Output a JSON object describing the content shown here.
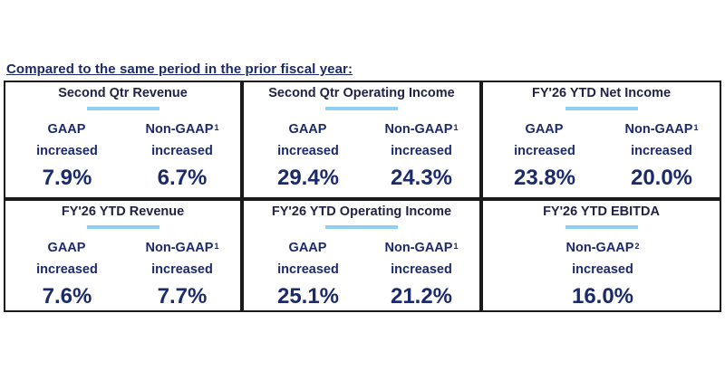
{
  "heading": "Compared to the same period in the prior fiscal year:",
  "cards": [
    {
      "title": "Second Qtr Revenue",
      "metrics": [
        {
          "label": "GAAP",
          "note": "",
          "sub": "increased",
          "value": "7.9%"
        },
        {
          "label": "Non-GAAP",
          "note": "1",
          "sub": "increased",
          "value": "6.7%"
        }
      ]
    },
    {
      "title": "Second Qtr Operating Income",
      "metrics": [
        {
          "label": "GAAP",
          "note": "",
          "sub": "increased",
          "value": "29.4%"
        },
        {
          "label": "Non-GAAP",
          "note": "1",
          "sub": "increased",
          "value": "24.3%"
        }
      ]
    },
    {
      "title": "FY'26 YTD Net Income",
      "metrics": [
        {
          "label": "GAAP",
          "note": "",
          "sub": "increased",
          "value": "23.8%"
        },
        {
          "label": "Non-GAAP",
          "note": "1",
          "sub": "increased",
          "value": "20.0%"
        }
      ]
    },
    {
      "title": "FY'26 YTD Revenue",
      "metrics": [
        {
          "label": "GAAP",
          "note": "",
          "sub": "increased",
          "value": "7.6%"
        },
        {
          "label": "Non-GAAP",
          "note": "1",
          "sub": "increased",
          "value": "7.7%"
        }
      ]
    },
    {
      "title": "FY'26 YTD Operating Income",
      "metrics": [
        {
          "label": "GAAP",
          "note": "",
          "sub": "increased",
          "value": "25.1%"
        },
        {
          "label": "Non-GAAP",
          "note": "1",
          "sub": "increased",
          "value": "21.2%"
        }
      ]
    },
    {
      "title": "FY'26 YTD EBITDA",
      "metrics": [
        {
          "label": "Non-GAAP",
          "note": "2",
          "sub": "increased",
          "value": "16.0%"
        }
      ]
    }
  ],
  "colors": {
    "text": "#1b2a6b",
    "accent_rule": "#8fd0f0",
    "border": "#1a1a1a"
  }
}
